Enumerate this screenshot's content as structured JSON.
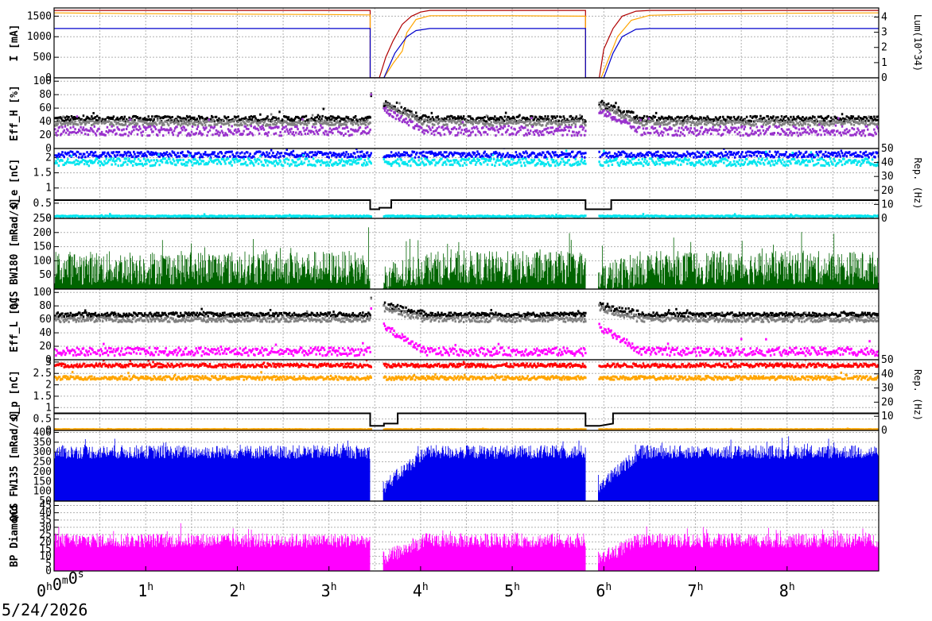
{
  "chart_data": {
    "type": "multi-panel-time-series",
    "date": "5/24/2026",
    "x_axis": {
      "unit": "hours",
      "range": [
        0,
        9
      ],
      "ticks": [
        {
          "v": 0,
          "base": "0",
          "sup": "h",
          "rest": [
            {
              "b": "0",
              "s": "m"
            },
            {
              "b": "0",
              "s": "s"
            }
          ]
        },
        {
          "v": 1,
          "base": "1",
          "sup": "h"
        },
        {
          "v": 2,
          "base": "2",
          "sup": "h"
        },
        {
          "v": 3,
          "base": "3",
          "sup": "h"
        },
        {
          "v": 4,
          "base": "4",
          "sup": "h"
        },
        {
          "v": 5,
          "base": "5",
          "sup": "h"
        },
        {
          "v": 6,
          "base": "6",
          "sup": "h"
        },
        {
          "v": 7,
          "base": "7",
          "sup": "h"
        },
        {
          "v": 8,
          "base": "8",
          "sup": "h"
        }
      ]
    },
    "panels": [
      {
        "id": "current",
        "ylabel": "I [mA]",
        "ylim": [
          0,
          1700
        ],
        "yticks": [
          0,
          500,
          1000,
          1500
        ],
        "right_axis": {
          "label": "Lum(10^34)",
          "ylim": [
            0,
            4.6
          ],
          "ticks": [
            0,
            1,
            2,
            3,
            4
          ]
        },
        "series": [
          {
            "kind": "line",
            "color": "#b00000",
            "points": [
              [
                0,
                1640
              ],
              [
                3.45,
                1640
              ],
              [
                3.45,
                0
              ],
              [
                3.55,
                0
              ],
              [
                3.62,
                500
              ],
              [
                3.7,
                900
              ],
              [
                3.8,
                1300
              ],
              [
                3.9,
                1500
              ],
              [
                4.0,
                1600
              ],
              [
                4.1,
                1640
              ],
              [
                5.8,
                1640
              ],
              [
                5.8,
                0
              ],
              [
                5.95,
                0
              ],
              [
                6.0,
                700
              ],
              [
                6.1,
                1200
              ],
              [
                6.2,
                1500
              ],
              [
                6.35,
                1620
              ],
              [
                6.5,
                1640
              ],
              [
                9,
                1640
              ]
            ]
          },
          {
            "kind": "line",
            "color": "#ffa500",
            "points": [
              [
                0,
                1580
              ],
              [
                1,
                1560
              ],
              [
                2,
                1550
              ],
              [
                3,
                1540
              ],
              [
                3.45,
                1530
              ],
              [
                3.45,
                0
              ],
              [
                3.6,
                0
              ],
              [
                3.7,
                350
              ],
              [
                3.8,
                650
              ],
              [
                3.85,
                1100
              ],
              [
                3.95,
                1420
              ],
              [
                4.1,
                1510
              ],
              [
                5,
                1510
              ],
              [
                5.8,
                1500
              ],
              [
                5.8,
                0
              ],
              [
                5.97,
                0
              ],
              [
                6.05,
                450
              ],
              [
                6.15,
                1000
              ],
              [
                6.3,
                1400
              ],
              [
                6.5,
                1520
              ],
              [
                7,
                1550
              ],
              [
                8,
                1570
              ],
              [
                9,
                1580
              ]
            ]
          },
          {
            "kind": "line",
            "color": "#0000cc",
            "points": [
              [
                0,
                1200
              ],
              [
                3.45,
                1200
              ],
              [
                3.45,
                0
              ],
              [
                3.6,
                0
              ],
              [
                3.72,
                600
              ],
              [
                3.85,
                1000
              ],
              [
                3.95,
                1150
              ],
              [
                4.1,
                1200
              ],
              [
                5.8,
                1200
              ],
              [
                5.8,
                0
              ],
              [
                6.0,
                0
              ],
              [
                6.1,
                600
              ],
              [
                6.2,
                1000
              ],
              [
                6.35,
                1180
              ],
              [
                6.5,
                1200
              ],
              [
                9,
                1200
              ]
            ]
          }
        ]
      },
      {
        "id": "effH",
        "ylabel": "Eff_H [%]",
        "ylim": [
          0,
          105
        ],
        "yticks": [
          0,
          20,
          40,
          60,
          80,
          100
        ],
        "series": [
          {
            "kind": "scatter",
            "color": "#000000",
            "base": 44,
            "spread": 4
          },
          {
            "kind": "scatter",
            "color": "#808080",
            "base": 38,
            "spread": 4
          },
          {
            "kind": "scatter",
            "color": "#9932cc",
            "base": 26,
            "spread": 7
          }
        ]
      },
      {
        "id": "qe",
        "ylabel": "Q_e [nC]",
        "ylim": [
          0,
          2.3
        ],
        "yticks": [
          0,
          0.5,
          1,
          1.5,
          2
        ],
        "right_axis": {
          "label": "Rep. (Hz)",
          "ylim": [
            0,
            50
          ],
          "ticks": [
            0,
            10,
            20,
            30,
            40,
            50
          ]
        },
        "series": [
          {
            "kind": "scatter",
            "color": "#0000ff",
            "base": 2.1,
            "spread": 0.1
          },
          {
            "kind": "scatter",
            "color": "#00e5ee",
            "base": 1.85,
            "spread": 0.12
          },
          {
            "kind": "step",
            "color": "#000000",
            "points": [
              [
                0,
                0.6
              ],
              [
                3.45,
                0.6
              ],
              [
                3.45,
                0.3
              ],
              [
                3.55,
                0.3
              ],
              [
                3.55,
                0.35
              ],
              [
                3.68,
                0.35
              ],
              [
                3.68,
                0.6
              ],
              [
                5.8,
                0.6
              ],
              [
                5.8,
                0.3
              ],
              [
                5.95,
                0.3
              ],
              [
                6.08,
                0.3
              ],
              [
                6.08,
                0.6
              ],
              [
                9,
                0.6
              ]
            ]
          },
          {
            "kind": "scatter",
            "color": "#00e5ee",
            "base": 0.07,
            "spread": 0.02
          }
        ]
      },
      {
        "id": "qcs_bw",
        "ylabel": "QCS BW180 [mRad/s]",
        "ylim": [
          0,
          250
        ],
        "yticks": [
          50,
          100,
          150,
          200,
          250
        ],
        "series": [
          {
            "kind": "hist",
            "color": "#006400",
            "base": 75,
            "spread": 60
          }
        ]
      },
      {
        "id": "effL",
        "ylabel": "Eff_L [%]",
        "ylim": [
          0,
          105
        ],
        "yticks": [
          0,
          20,
          40,
          60,
          80,
          100
        ],
        "series": [
          {
            "kind": "scatter",
            "color": "#000000",
            "base": 67,
            "spread": 3
          },
          {
            "kind": "scatter",
            "color": "#808080",
            "base": 60,
            "spread": 4
          },
          {
            "kind": "scatter",
            "color": "#ff00ff",
            "base": 12,
            "spread": 6
          }
        ]
      },
      {
        "id": "qp",
        "ylabel": "Q_p [nC]",
        "ylim": [
          0,
          3.1
        ],
        "yticks": [
          0,
          0.5,
          1,
          1.5,
          2,
          2.5,
          3
        ],
        "right_axis": {
          "label": "Rep. (Hz)",
          "ylim": [
            0,
            50
          ],
          "ticks": [
            0,
            10,
            20,
            30,
            40,
            50
          ]
        },
        "series": [
          {
            "kind": "scatter",
            "color": "#ff0000",
            "base": 2.85,
            "spread": 0.08
          },
          {
            "kind": "scatter",
            "color": "#ffa500",
            "base": 2.3,
            "spread": 0.08
          },
          {
            "kind": "step",
            "color": "#000000",
            "points": [
              [
                0,
                0.75
              ],
              [
                3.45,
                0.75
              ],
              [
                3.45,
                0.2
              ],
              [
                3.6,
                0.2
              ],
              [
                3.6,
                0.3
              ],
              [
                3.75,
                0.3
              ],
              [
                3.75,
                0.75
              ],
              [
                5.8,
                0.75
              ],
              [
                5.8,
                0.2
              ],
              [
                5.95,
                0.2
              ],
              [
                6.1,
                0.3
              ],
              [
                6.1,
                0.75
              ],
              [
                9,
                0.75
              ]
            ]
          },
          {
            "kind": "scatter",
            "color": "#ffa500",
            "base": 0.04,
            "spread": 0.01
          }
        ]
      },
      {
        "id": "qcs_fw",
        "ylabel": "QCS FW135 [mRad/s]",
        "ylim": [
          50,
          410
        ],
        "yticks": [
          50,
          100,
          150,
          200,
          250,
          300,
          350,
          400
        ],
        "series": [
          {
            "kind": "hist",
            "color": "#0000ee",
            "base": 300,
            "spread": 35
          }
        ]
      },
      {
        "id": "bp",
        "ylabel": "BP Diamond",
        "ylim": [
          0,
          48
        ],
        "yticks": [
          0,
          5,
          10,
          15,
          20,
          25,
          30,
          35,
          40,
          45
        ],
        "series": [
          {
            "kind": "hist",
            "color": "#ff00ff",
            "base": 21,
            "spread": 5
          }
        ]
      }
    ],
    "beam_loss_events_h": [
      3.45,
      5.8
    ]
  }
}
